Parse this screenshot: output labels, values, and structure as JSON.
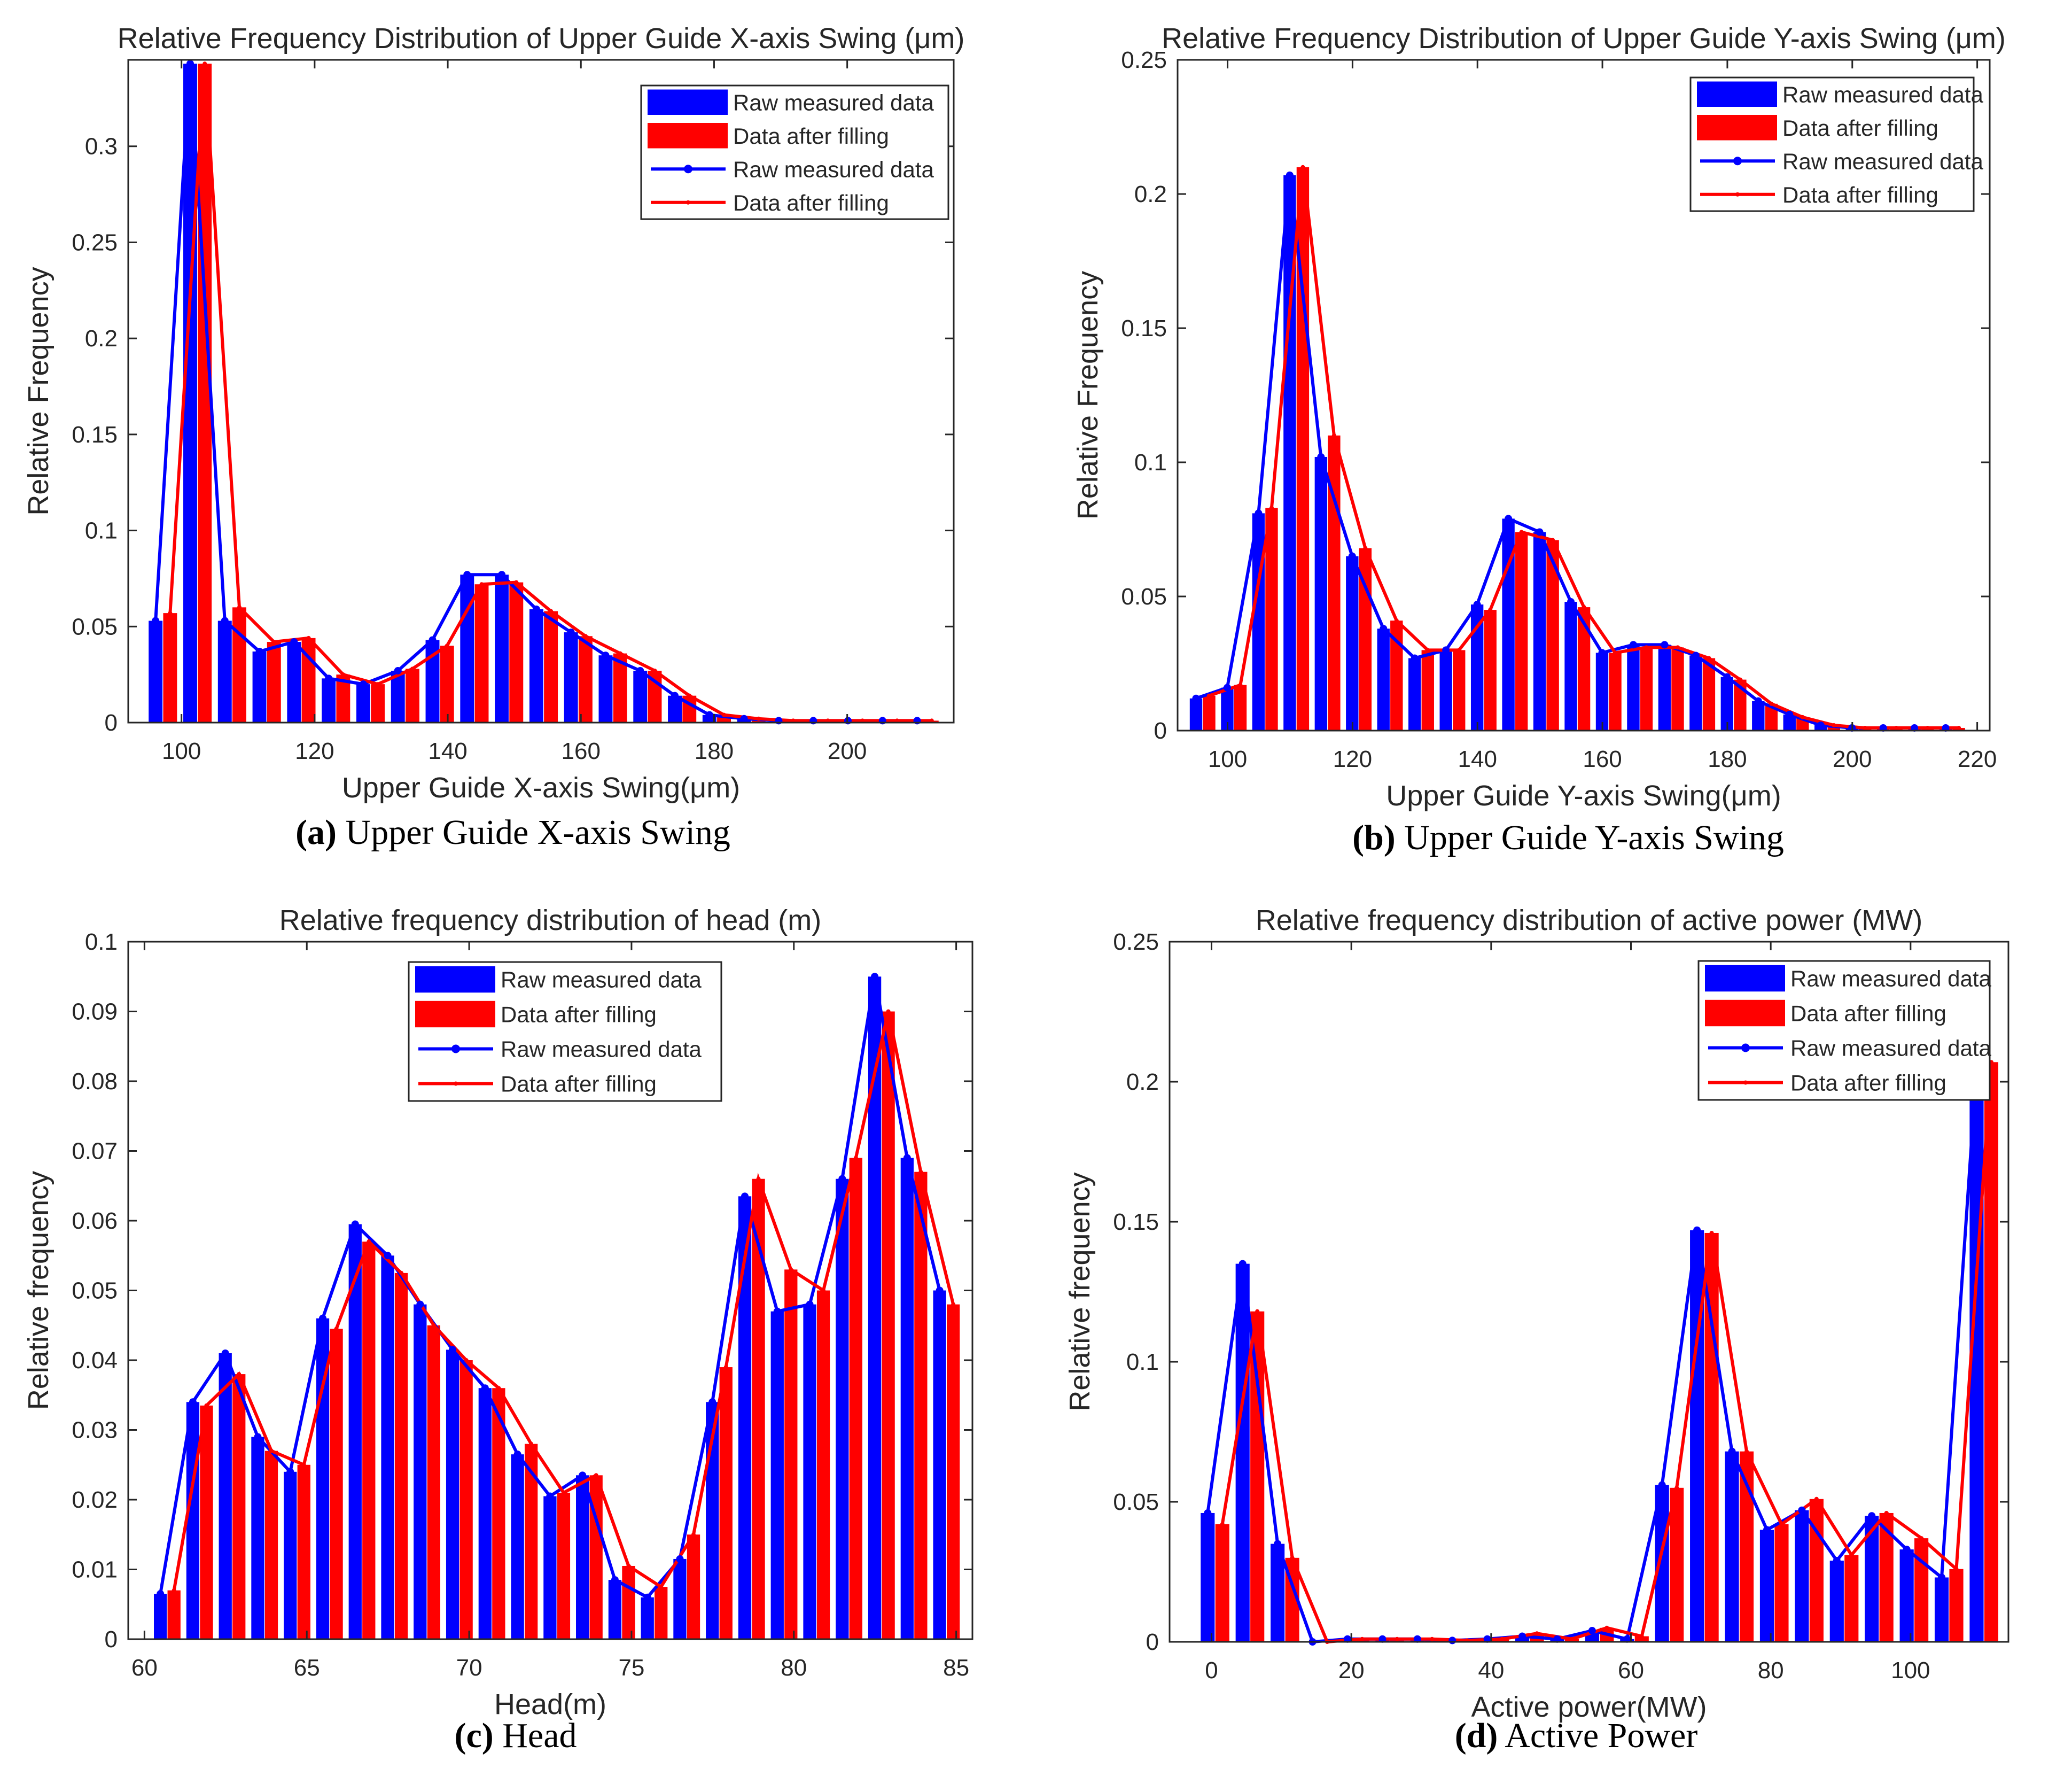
{
  "colors": {
    "raw": "#0000ff",
    "filled": "#ff0000",
    "axis": "#262626"
  },
  "chart_data": [
    {
      "id": "a",
      "type": "bar",
      "title": "Relative Frequency Distribution of Upper Guide X-axis Swing (μm)",
      "xlabel": "Upper Guide X-axis Swing(μm)",
      "ylabel": "Relative Frequency",
      "xlim": [
        92,
        216
      ],
      "ylim": [
        0,
        0.345
      ],
      "xticks": [
        100,
        120,
        140,
        160,
        180,
        200
      ],
      "yticks": [
        0,
        0.05,
        0.1,
        0.15,
        0.2,
        0.25,
        0.3
      ],
      "x": [
        97.2,
        102.4,
        107.6,
        112.8,
        118.0,
        123.2,
        128.4,
        133.6,
        138.8,
        144.0,
        149.2,
        154.4,
        159.6,
        164.8,
        170.0,
        175.2,
        180.4,
        185.6,
        190.8,
        196.0,
        201.2,
        206.4,
        211.6
      ],
      "series": [
        {
          "name": "Raw measured data",
          "values": [
            0.053,
            0.343,
            0.053,
            0.037,
            0.042,
            0.023,
            0.02,
            0.027,
            0.043,
            0.077,
            0.077,
            0.059,
            0.047,
            0.035,
            0.027,
            0.014,
            0.004,
            0.002,
            0.001,
            0.001,
            0.001,
            0.001,
            0.001
          ]
        },
        {
          "name": "Data after filling",
          "values": [
            0.057,
            0.343,
            0.06,
            0.042,
            0.044,
            0.025,
            0.02,
            0.028,
            0.04,
            0.072,
            0.073,
            0.058,
            0.045,
            0.036,
            0.027,
            0.014,
            0.004,
            0.002,
            0.001,
            0.001,
            0.001,
            0.001,
            0.001
          ]
        }
      ],
      "legend": [
        "Raw measured data",
        "Data after filling",
        "Raw measured data",
        "Data after filling"
      ],
      "legend_position": "top-right",
      "caption_label": "(a)",
      "caption_text": "Upper Guide X-axis Swing"
    },
    {
      "id": "b",
      "type": "bar",
      "title": "Relative Frequency Distribution of Upper Guide Y-axis Swing (μm)",
      "xlabel": "Upper Guide Y-axis Swing(μm)",
      "ylabel": "Relative Frequency",
      "xlim": [
        92,
        222
      ],
      "ylim": [
        0,
        0.25
      ],
      "xticks": [
        100,
        120,
        140,
        160,
        180,
        200,
        220
      ],
      "yticks": [
        0,
        0.05,
        0.1,
        0.15,
        0.2,
        0.25
      ],
      "x": [
        96.0,
        101.0,
        106.0,
        111.0,
        116.0,
        121.0,
        126.0,
        131.0,
        136.0,
        141.0,
        146.0,
        151.0,
        156.0,
        161.0,
        166.0,
        171.0,
        176.0,
        181.0,
        186.0,
        191.0,
        196.0,
        201.0,
        206.0,
        211.0,
        216.0
      ],
      "series": [
        {
          "name": "Raw measured data",
          "values": [
            0.012,
            0.016,
            0.081,
            0.207,
            0.102,
            0.065,
            0.038,
            0.027,
            0.03,
            0.047,
            0.079,
            0.074,
            0.048,
            0.029,
            0.032,
            0.032,
            0.028,
            0.02,
            0.011,
            0.006,
            0.002,
            0.001,
            0.001,
            0.001,
            0.001
          ]
        },
        {
          "name": "Data after filling",
          "values": [
            0.013,
            0.017,
            0.083,
            0.21,
            0.11,
            0.068,
            0.041,
            0.03,
            0.03,
            0.045,
            0.074,
            0.071,
            0.046,
            0.029,
            0.031,
            0.031,
            0.027,
            0.019,
            0.01,
            0.005,
            0.002,
            0.001,
            0.001,
            0.001,
            0.001
          ]
        }
      ],
      "legend": [
        "Raw measured data",
        "Data after filling",
        "Raw measured data",
        "Data after filling"
      ],
      "legend_position": "top-right",
      "caption_label": "(b)",
      "caption_text": "Upper Guide Y-axis Swing"
    },
    {
      "id": "c",
      "type": "bar",
      "title": "Relative frequency distribution of head (m)",
      "xlabel": "Head(m)",
      "ylabel": "Relative frequency",
      "xlim": [
        59.5,
        85.5
      ],
      "ylim": [
        0,
        0.1
      ],
      "xticks": [
        60,
        65,
        70,
        75,
        80,
        85
      ],
      "yticks": [
        0,
        0.01,
        0.02,
        0.03,
        0.04,
        0.05,
        0.06,
        0.07,
        0.08,
        0.09,
        0.1
      ],
      "x": [
        60.7,
        61.7,
        62.7,
        63.7,
        64.7,
        65.7,
        66.7,
        67.7,
        68.7,
        69.7,
        70.7,
        71.7,
        72.7,
        73.7,
        74.7,
        75.7,
        76.7,
        77.7,
        78.7,
        79.7,
        80.7,
        81.7,
        82.7,
        83.7,
        84.7
      ],
      "series": [
        {
          "name": "Raw measured data",
          "values": [
            0.0065,
            0.034,
            0.041,
            0.029,
            0.024,
            0.046,
            0.0595,
            0.055,
            0.048,
            0.0415,
            0.036,
            0.0265,
            0.0205,
            0.0235,
            0.0085,
            0.006,
            0.0115,
            0.034,
            0.0635,
            0.047,
            0.048,
            0.066,
            0.095,
            0.069,
            0.05
          ]
        },
        {
          "name": "Data after filling",
          "values": [
            0.007,
            0.0335,
            0.038,
            0.027,
            0.025,
            0.0445,
            0.057,
            0.0525,
            0.045,
            0.04,
            0.036,
            0.028,
            0.021,
            0.0235,
            0.0105,
            0.0075,
            0.015,
            0.039,
            0.066,
            0.053,
            0.05,
            0.069,
            0.09,
            0.067,
            0.048
          ]
        }
      ],
      "legend": [
        "Raw measured data",
        "Data after filling",
        "Raw measured data",
        "Data after filling"
      ],
      "legend_position": "top-center",
      "caption_label": "(c)",
      "caption_text": "Head"
    },
    {
      "id": "d",
      "type": "bar",
      "title": "Relative frequency distribution of active power (MW)",
      "xlabel": "Active power(MW)",
      "ylabel": "Relative frequency",
      "xlim": [
        -6,
        114
      ],
      "ylim": [
        0,
        0.25
      ],
      "xticks": [
        0,
        20,
        40,
        60,
        80,
        100
      ],
      "yticks": [
        0,
        0.05,
        0.1,
        0.15,
        0.2,
        0.25
      ],
      "x": [
        0.5,
        5.5,
        10.5,
        15.5,
        20.5,
        25.5,
        30.5,
        35.5,
        40.5,
        45.5,
        50.5,
        55.5,
        60.5,
        65.5,
        70.5,
        75.5,
        80.5,
        85.5,
        90.5,
        95.5,
        100.5,
        105.5,
        110.5
      ],
      "series": [
        {
          "name": "Raw measured data",
          "values": [
            0.046,
            0.135,
            0.035,
            0.0,
            0.001,
            0.001,
            0.001,
            0.0005,
            0.001,
            0.002,
            0.001,
            0.004,
            0.001,
            0.056,
            0.147,
            0.068,
            0.04,
            0.047,
            0.029,
            0.045,
            0.033,
            0.023,
            0.205
          ]
        },
        {
          "name": "Data after filling",
          "values": [
            0.042,
            0.118,
            0.03,
            0.0,
            0.001,
            0.001,
            0.001,
            0.0005,
            0.001,
            0.003,
            0.001,
            0.005,
            0.002,
            0.055,
            0.146,
            0.068,
            0.042,
            0.051,
            0.031,
            0.046,
            0.037,
            0.026,
            0.207
          ]
        }
      ],
      "legend": [
        "Raw measured data",
        "Data after filling",
        "Raw measured data",
        "Data after filling"
      ],
      "legend_position": "top-right",
      "caption_label": "(d)",
      "caption_text": "Active Power"
    }
  ]
}
